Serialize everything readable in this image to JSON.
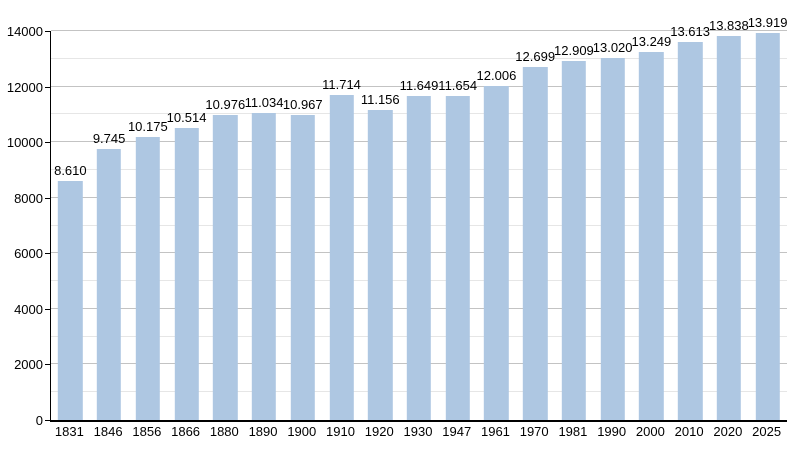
{
  "chart_data": {
    "type": "bar",
    "title": "",
    "xlabel": "",
    "ylabel": "",
    "categories": [
      "1831",
      "1846",
      "1856",
      "1866",
      "1880",
      "1890",
      "1900",
      "1910",
      "1920",
      "1930",
      "1947",
      "1961",
      "1970",
      "1981",
      "1990",
      "2000",
      "2010",
      "2020",
      "2025"
    ],
    "values": [
      8610,
      9745,
      10175,
      10514,
      10976,
      11034,
      10967,
      11714,
      11156,
      11649,
      11654,
      12006,
      12699,
      12909,
      13020,
      13249,
      13613,
      13838,
      13919
    ],
    "value_labels": [
      "8.610",
      "9.745",
      "10.175",
      "10.514",
      "10.976",
      "11.034",
      "10.967",
      "11.714",
      "11.156",
      "11.649",
      "11.654",
      "12.006",
      "12.699",
      "12.909",
      "13.020",
      "13.249",
      "13.613",
      "13.838",
      "13.919"
    ],
    "ylim": [
      0,
      14000
    ],
    "y_ticks": [
      "0",
      "2000",
      "4000",
      "6000",
      "8000",
      "10000",
      "12000",
      "14000"
    ],
    "y_major_step": 2000,
    "y_minor_step": 1000,
    "grid": true,
    "legend": "none",
    "colors": {
      "bar_fill": "#aec7e2",
      "major_gridline": "#c3c3c3",
      "minor_gridline": "#e6e6e6",
      "axis": "#000000",
      "text": "#000000",
      "background": "#ffffff"
    }
  }
}
